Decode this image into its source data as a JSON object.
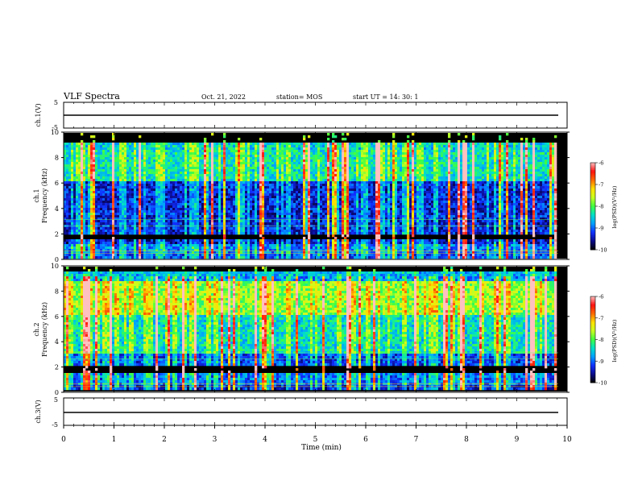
{
  "header": {
    "title": "VLF Spectra",
    "date": "Oct. 21, 2022",
    "station": "station= MOS",
    "start_ut": "start  UT =   14: 30: 1"
  },
  "colors": {
    "axis": "#000000",
    "colormap": [
      "#000000",
      "#0b0b8a",
      "#1030ff",
      "#00a0ff",
      "#00e0c8",
      "#40ff40",
      "#c8ff20",
      "#ffe000",
      "#ff6a00",
      "#ff1010",
      "#ffc0c0"
    ]
  },
  "chart_data": [
    {
      "type": "line",
      "ylabel": "ch.1(V)",
      "ylim": [
        -5,
        5
      ],
      "yticks": [
        "5",
        "-5"
      ],
      "note": "waveform trace"
    },
    {
      "type": "heatmap",
      "ylabel": "ch.1",
      "ylabel2": "Frequency  (kHz)",
      "ylim": [
        0,
        10
      ],
      "yticks": [
        "0",
        "2",
        "4",
        "6",
        "8",
        "10"
      ],
      "colorbar": {
        "label": "log(PSD)(V²/Hz)",
        "range": [
          -10,
          -6
        ],
        "ticks": [
          "-6",
          "-7",
          "-8",
          "-9",
          "-10"
        ]
      }
    },
    {
      "type": "heatmap",
      "ylabel": "ch.2",
      "ylabel2": "Frequency  (kHz)",
      "ylim": [
        0,
        10
      ],
      "yticks": [
        "0",
        "2",
        "4",
        "6",
        "8",
        "10"
      ],
      "colorbar": {
        "label": "log(PSD)(V²/Hz)",
        "range": [
          -10,
          -6
        ],
        "ticks": [
          "-6",
          "-7",
          "-8",
          "-9",
          "-10"
        ]
      }
    },
    {
      "type": "line",
      "ylabel": "ch.3(V)",
      "ylim": [
        -5,
        5
      ],
      "yticks": [
        "5",
        "-5"
      ],
      "note": "waveform trace"
    }
  ],
  "xaxis": {
    "label": "Time  (min)",
    "range": [
      0,
      10
    ],
    "ticks": [
      "0",
      "1",
      "2",
      "3",
      "4",
      "5",
      "6",
      "7",
      "8",
      "9",
      "10"
    ]
  }
}
